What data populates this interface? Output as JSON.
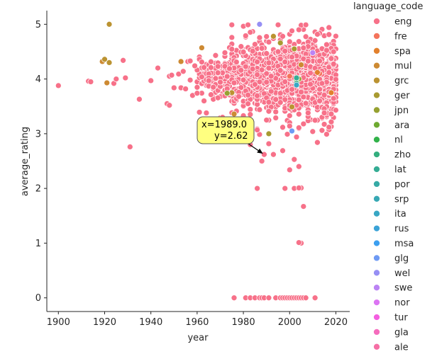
{
  "chart_data": {
    "type": "scatter",
    "xlabel": "year",
    "ylabel": "average_rating",
    "xlim": [
      1895,
      2026
    ],
    "ylim": [
      -0.25,
      5.25
    ],
    "xticks": [
      "1900",
      "1920",
      "1940",
      "1960",
      "1980",
      "2000",
      "2020"
    ],
    "yticks": [
      "0",
      "1",
      "2",
      "3",
      "4",
      "5"
    ],
    "grid": false,
    "legend": {
      "title": "language_code",
      "placement": "outside-right",
      "entries": [
        {
          "name": "eng",
          "color": "#f77189"
        },
        {
          "name": "fre",
          "color": "#f4745c"
        },
        {
          "name": "spa",
          "color": "#e2802d"
        },
        {
          "name": "mul",
          "color": "#cd8a33"
        },
        {
          "name": "grc",
          "color": "#bb9331"
        },
        {
          "name": "ger",
          "color": "#a89a31"
        },
        {
          "name": "jpn",
          "color": "#96a131"
        },
        {
          "name": "ara",
          "color": "#6eaa31"
        },
        {
          "name": "nl",
          "color": "#32b24a"
        },
        {
          "name": "zho",
          "color": "#34ae7e"
        },
        {
          "name": "lat",
          "color": "#35ac94"
        },
        {
          "name": "por",
          "color": "#36aaa5"
        },
        {
          "name": "srp",
          "color": "#37a8b4"
        },
        {
          "name": "ita",
          "color": "#38a7c4"
        },
        {
          "name": "rus",
          "color": "#3ba3d7"
        },
        {
          "name": "msa",
          "color": "#3c9ff0"
        },
        {
          "name": "glg",
          "color": "#6e9af4"
        },
        {
          "name": "wel",
          "color": "#968ff4"
        },
        {
          "name": "swe",
          "color": "#bb83f4"
        },
        {
          "name": "nor",
          "color": "#dc75f3"
        },
        {
          "name": "tur",
          "color": "#f45fe0"
        },
        {
          "name": "gla",
          "color": "#f56cbd"
        },
        {
          "name": "ale",
          "color": "#f66fa5"
        }
      ]
    },
    "annotation": {
      "text_line1": "x=1989.0",
      "text_line2": "y=2.62",
      "point_x": 1989.0,
      "point_y": 2.62,
      "box_color": "#ffff80"
    },
    "series": [
      {
        "name": "eng",
        "points": [
          [
            1900,
            3.88
          ],
          [
            1913,
            3.96
          ],
          [
            1914,
            3.95
          ],
          [
            1924,
            3.92
          ],
          [
            1925,
            4.0
          ],
          [
            1928,
            4.34
          ],
          [
            1929,
            4.02
          ],
          [
            1931,
            2.76
          ],
          [
            1935,
            3.63
          ],
          [
            1940,
            3.97
          ],
          [
            1943,
            4.2
          ],
          [
            1947,
            3.55
          ],
          [
            1948,
            3.52
          ],
          [
            1948,
            4.05
          ],
          [
            1949,
            4.07
          ],
          [
            1950,
            3.84
          ],
          [
            1952,
            4.09
          ],
          [
            1953,
            3.84
          ],
          [
            1954,
            4.14
          ],
          [
            1955,
            3.82
          ],
          [
            1956,
            4.32
          ],
          [
            1957,
            4.33
          ],
          [
            1957,
            3.98
          ],
          [
            1958,
            3.7
          ],
          [
            1959,
            4.24
          ],
          [
            1960,
            3.74
          ],
          [
            1961,
            4.36
          ],
          [
            1962,
            4.31
          ],
          [
            1963,
            3.6
          ],
          [
            1964,
            3.38
          ],
          [
            1965,
            3.97
          ],
          [
            1966,
            4.21
          ],
          [
            1967,
            3.85
          ],
          [
            1968,
            4.01
          ],
          [
            1969,
            4.23
          ],
          [
            1970,
            3.29
          ],
          [
            1971,
            3.3
          ],
          [
            1972,
            4.48
          ],
          [
            1973,
            3.82
          ],
          [
            1974,
            4.19
          ],
          [
            1975,
            3.05
          ],
          [
            1975,
            4.99
          ],
          [
            1976,
            3.93
          ],
          [
            1977,
            4.31
          ],
          [
            1978,
            3.68
          ],
          [
            1979,
            4.16
          ],
          [
            1980,
            3.33
          ],
          [
            1981,
            3.19
          ],
          [
            1982,
            4.99
          ],
          [
            1983,
            2.8
          ],
          [
            1984,
            4.51
          ],
          [
            1985,
            3.9
          ],
          [
            1986,
            3.07
          ],
          [
            1987,
            3.44
          ],
          [
            1988,
            2.5
          ],
          [
            1989,
            2.62
          ],
          [
            1990,
            4.1
          ],
          [
            1991,
            3.41
          ],
          [
            1992,
            4.05
          ],
          [
            1993,
            2.62
          ],
          [
            1994,
            3.29
          ],
          [
            1995,
            4.99
          ],
          [
            1996,
            3.74
          ],
          [
            1997,
            2.69
          ],
          [
            1998,
            3.95
          ],
          [
            1999,
            2.99
          ],
          [
            2000,
            2.34
          ],
          [
            2001,
            3.81
          ],
          [
            2002,
            2.53
          ],
          [
            2003,
            3.52
          ],
          [
            2004,
            2.4
          ],
          [
            2005,
            2.01
          ],
          [
            2006,
            3.18
          ],
          [
            2007,
            4.99
          ],
          [
            2008,
            3.38
          ],
          [
            2009,
            4.11
          ],
          [
            2010,
            3.04
          ],
          [
            2011,
            3.57
          ],
          [
            2012,
            2.84
          ],
          [
            2013,
            3.6
          ],
          [
            2014,
            3.92
          ],
          [
            2015,
            3.38
          ],
          [
            2016,
            2.99
          ],
          [
            2017,
            3.12
          ],
          [
            2018,
            3.74
          ],
          [
            2019,
            4.5
          ],
          [
            2020,
            3.43
          ],
          [
            2001,
            4.88
          ],
          [
            2004,
            4.9
          ],
          [
            1997,
            4.78
          ],
          [
            1986,
            2.0
          ],
          [
            1998,
            2.0
          ],
          [
            2002,
            2.0
          ],
          [
            2004,
            2.01
          ],
          [
            2005,
            1.0
          ],
          [
            2004,
            1.01
          ],
          [
            2006,
            1.67
          ],
          [
            1976,
            0
          ],
          [
            1981,
            0
          ],
          [
            1983,
            0
          ],
          [
            1985,
            0
          ],
          [
            1987,
            0
          ],
          [
            1988,
            0
          ],
          [
            1989,
            0
          ],
          [
            1991,
            0
          ],
          [
            1994,
            0
          ],
          [
            1996,
            0
          ],
          [
            1997,
            0
          ],
          [
            1998,
            0
          ],
          [
            1999,
            0
          ],
          [
            2000,
            0
          ],
          [
            2001,
            0
          ],
          [
            2002,
            0
          ],
          [
            2003,
            0
          ],
          [
            2004,
            0
          ],
          [
            2005,
            0
          ],
          [
            2006,
            0
          ],
          [
            2007,
            0
          ],
          [
            2011,
            0
          ]
        ]
      },
      {
        "name": "mul",
        "points": [
          [
            1919,
            4.32
          ],
          [
            1921,
            3.93
          ],
          [
            1953,
            4.32
          ],
          [
            1962,
            4.57
          ],
          [
            1976,
            3.36
          ],
          [
            1974,
            3.04
          ],
          [
            2005,
            4.26
          ]
        ]
      },
      {
        "name": "grc",
        "points": [
          [
            1920,
            4.36
          ],
          [
            1922,
            4.3
          ],
          [
            1922,
            5.0
          ],
          [
            1975,
            3.75
          ],
          [
            2001,
            3.49
          ],
          [
            1993,
            4.78
          ]
        ]
      },
      {
        "name": "ger",
        "points": [
          [
            1991,
            3.0
          ],
          [
            1996,
            4.66
          ],
          [
            2002,
            4.55
          ]
        ]
      },
      {
        "name": "jpn",
        "points": [
          [
            1973,
            3.74
          ],
          [
            2004,
            4.0
          ]
        ]
      },
      {
        "name": "fre",
        "points": [
          [
            2000,
            4.05
          ],
          [
            2013,
            4.1
          ]
        ]
      },
      {
        "name": "spa",
        "points": [
          [
            2012,
            4.12
          ],
          [
            2018,
            3.75
          ]
        ]
      },
      {
        "name": "ara",
        "points": [
          [
            2003,
            3.99
          ]
        ]
      },
      {
        "name": "zho",
        "points": [
          [
            2003,
            3.92
          ]
        ]
      },
      {
        "name": "lat",
        "points": [
          [
            2003,
            4.02
          ]
        ]
      },
      {
        "name": "ita",
        "points": [
          [
            2003,
            3.89
          ]
        ]
      },
      {
        "name": "wel",
        "points": [
          [
            1987,
            5.0
          ]
        ]
      },
      {
        "name": "swe",
        "points": [
          [
            2010,
            4.48
          ]
        ]
      },
      {
        "name": "glg",
        "points": [
          [
            2001,
            3.05
          ]
        ]
      }
    ]
  }
}
